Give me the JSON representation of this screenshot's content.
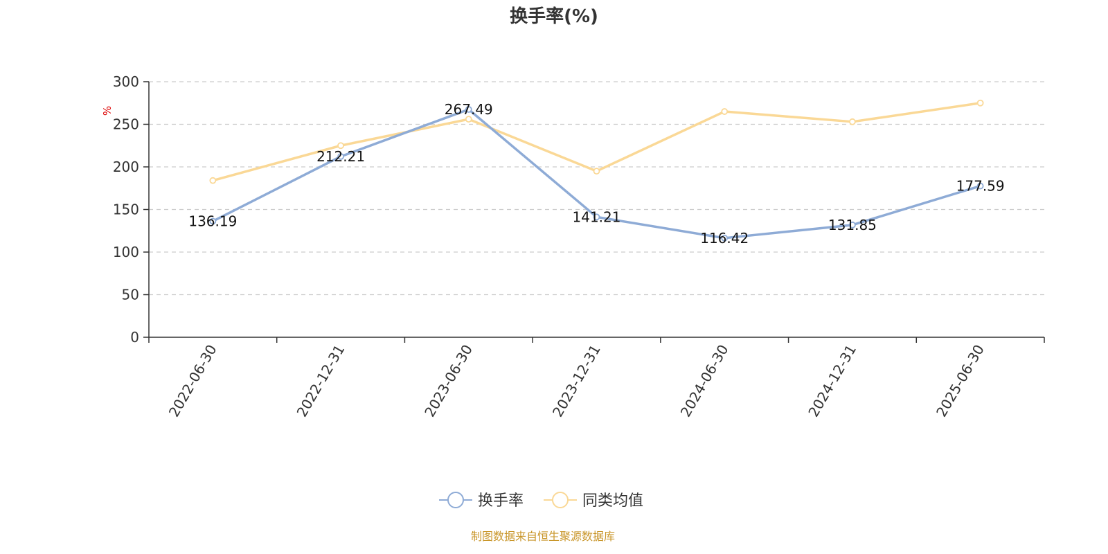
{
  "colors": {
    "series_main": "#8eabd6",
    "series_avg": "#fad896",
    "unit_label": "#dd0000",
    "source_text": "#c9962a",
    "grid": "#cccccc",
    "axis": "#333333"
  },
  "footer": {
    "source": "制图数据来自恒生聚源数据库"
  },
  "chart_data": {
    "type": "line",
    "title": "换手率(%)",
    "ylabel": "%",
    "xlabel": "",
    "ylim": [
      0,
      300
    ],
    "yticks": [
      0,
      50,
      100,
      150,
      200,
      250,
      300
    ],
    "grid": true,
    "legend_position": "bottom-center",
    "categories": [
      "2022-06-30",
      "2022-12-31",
      "2023-06-30",
      "2023-12-31",
      "2024-06-30",
      "2024-12-31",
      "2025-06-30"
    ],
    "series": [
      {
        "name": "换手率",
        "values": [
          136.19,
          212.21,
          267.49,
          141.21,
          116.42,
          131.85,
          177.59
        ],
        "data_labels": [
          "136.19",
          "212.21",
          "267.49",
          "141.21",
          "116.42",
          "131.85",
          "177.59"
        ]
      },
      {
        "name": "同类均值",
        "values": [
          184,
          225,
          256,
          195,
          265,
          253,
          275
        ]
      }
    ]
  }
}
